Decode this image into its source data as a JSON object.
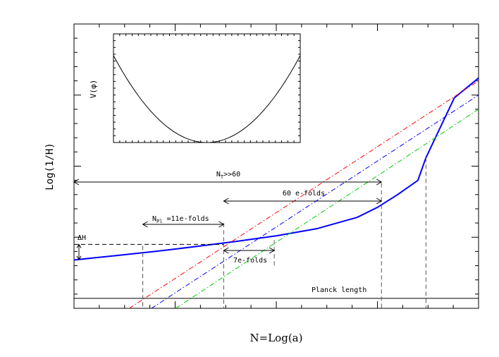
{
  "chart_data": [
    {
      "type": "line",
      "title": "",
      "xlabel": "N=Log(a)",
      "ylabel": "Log(1/H)",
      "xlim": [
        0,
        100
      ],
      "ylim": [
        0,
        100
      ],
      "grid": false,
      "legend": "none",
      "series": [
        {
          "color": "#0000ff",
          "style": "solid",
          "x": [
            0,
            10,
            20,
            30,
            40,
            50,
            60,
            70,
            75,
            80,
            85,
            87,
            94,
            100
          ],
          "y": [
            17,
            18.5,
            20,
            21.7,
            23.5,
            25.5,
            28,
            32,
            35.5,
            40,
            45,
            53,
            74,
            81
          ]
        },
        {
          "color": "#ff0000",
          "style": "dashdot",
          "x": [
            11.5,
            100
          ],
          "y": [
            -2,
            80
          ]
        },
        {
          "color": "#0000ff",
          "style": "dashdot",
          "x": [
            17,
            100
          ],
          "y": [
            -2,
            75
          ]
        },
        {
          "color": "#00cc00",
          "style": "dashdot",
          "x": [
            23,
            100
          ],
          "y": [
            -2,
            70
          ]
        },
        {
          "color": "#000000",
          "style": "solid",
          "x": [
            0,
            100
          ],
          "y": [
            3.5,
            3.5
          ]
        }
      ],
      "vlines": [
        17,
        37,
        76,
        87
      ],
      "annotations": {
        "total": "N",
        "total_sub": "T",
        "total_rest": ">>60",
        "efolds60": "60 e-folds",
        "npl": "N",
        "npl_sub": "Pl",
        "npl_rest": " =11e-folds",
        "efolds7": "7e-folds",
        "dh": "ΔH",
        "planck": "Planck length"
      }
    },
    {
      "type": "line",
      "title": "",
      "xlabel": "",
      "ylabel": "V(φ)",
      "xlim": [
        -1,
        1
      ],
      "ylim": [
        0,
        1
      ],
      "grid": false,
      "legend": "none",
      "series": [
        {
          "color": "#000000",
          "style": "solid",
          "x": [
            -1,
            -0.5,
            0,
            0.5,
            1
          ],
          "y": [
            0.8,
            0.2,
            0,
            0.2,
            0.8
          ]
        }
      ]
    }
  ]
}
